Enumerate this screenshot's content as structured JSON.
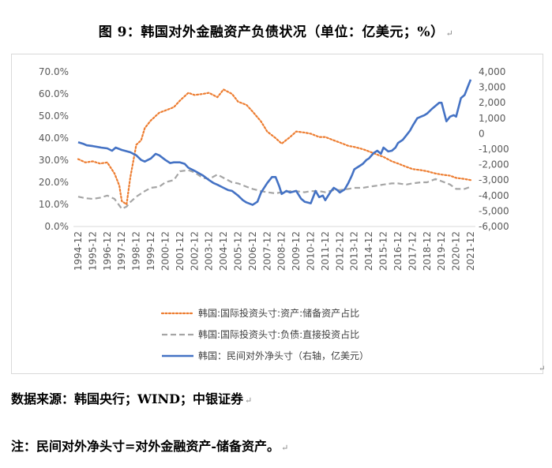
{
  "figure": {
    "title": "图 9：韩国对外金融资产负债状况（单位：亿美元；%）",
    "source": "数据来源：韩国央行；WIND；中银证券",
    "note": "注：民间对外净头寸=对外金融资产-储备资产。",
    "paragraph_mark": "↵"
  },
  "chart_data": {
    "type": "line",
    "title": "",
    "xlabel": "",
    "ylabel_left": "",
    "ylabel_right": "",
    "x_ticks": [
      "1994-12",
      "1995-12",
      "1996-12",
      "1997-12",
      "1998-12",
      "1999-12",
      "2000-12",
      "2001-12",
      "2002-12",
      "2003-12",
      "2004-12",
      "2005-12",
      "2006-12",
      "2007-12",
      "2008-12",
      "2009-12",
      "2010-12",
      "2011-12",
      "2012-12",
      "2013-12",
      "2014-12",
      "2015-12",
      "2016-12",
      "2017-12",
      "2018-12",
      "2019-12",
      "2020-12",
      "2021-12"
    ],
    "y_left": {
      "range": [
        0,
        70
      ],
      "ticks": [
        "0.0%",
        "10.0%",
        "20.0%",
        "30.0%",
        "40.0%",
        "50.0%",
        "60.0%",
        "70.0%"
      ]
    },
    "y_right": {
      "range": [
        -6000,
        4000
      ],
      "ticks": [
        "-6,000",
        "-5,000",
        "-4,000",
        "-3,000",
        "-2,000",
        "-1,000",
        "0",
        "1,000",
        "2,000",
        "3,000",
        "4,000"
      ]
    },
    "legend": [
      "韩国:国际投资头寸:资产:储备资产占比",
      "韩国:国际投资头寸:负债:直接投资占比",
      "韩国：民间对外净头寸（右轴，亿美元）"
    ],
    "series": [
      {
        "name": "韩国:国际投资头寸:资产:储备资产占比",
        "axis": "left",
        "color": "#ED7D31",
        "style": "dotted",
        "x": [
          1994.92,
          1995.42,
          1995.92,
          1996.42,
          1996.92,
          1997.42,
          1997.75,
          1997.92,
          1998.25,
          1998.5,
          1998.92,
          1999.25,
          1999.5,
          1999.92,
          2000.5,
          2000.92,
          2001.5,
          2001.92,
          2002.5,
          2002.92,
          2003.5,
          2003.92,
          2004.5,
          2004.92,
          2005.5,
          2005.92,
          2006.5,
          2006.92,
          2007.5,
          2007.92,
          2008.5,
          2008.92,
          2009.5,
          2009.92,
          2010.5,
          2010.92,
          2011.5,
          2011.92,
          2012.5,
          2012.92,
          2013.5,
          2013.92,
          2014.5,
          2014.92,
          2015.5,
          2015.92,
          2016.5,
          2016.92,
          2017.5,
          2017.92,
          2018.5,
          2018.92,
          2019.5,
          2019.92,
          2020.5,
          2020.92,
          2021.5,
          2021.92
        ],
        "values": [
          30.5,
          29.0,
          29.5,
          28.5,
          29.0,
          24.0,
          18.5,
          11.5,
          10.0,
          22.0,
          37.0,
          39.0,
          44.5,
          48.0,
          51.5,
          52.5,
          54.0,
          57.0,
          60.5,
          59.5,
          60.0,
          60.5,
          58.5,
          62.0,
          60.0,
          56.5,
          55.0,
          52.0,
          47.5,
          43.0,
          40.0,
          37.5,
          40.5,
          43.0,
          42.5,
          42.0,
          40.5,
          40.5,
          39.0,
          38.0,
          36.5,
          36.0,
          35.0,
          34.0,
          32.5,
          31.5,
          29.5,
          28.5,
          27.0,
          26.0,
          25.5,
          25.0,
          24.0,
          23.5,
          23.0,
          22.0,
          21.5,
          21.0
        ]
      },
      {
        "name": "韩国:国际投资头寸:负债:直接投资占比",
        "axis": "left",
        "color": "#A5A5A5",
        "style": "dashed",
        "x": [
          1994.92,
          1995.42,
          1995.92,
          1996.42,
          1996.92,
          1997.42,
          1997.92,
          1998.25,
          1998.5,
          1998.92,
          1999.5,
          1999.92,
          2000.5,
          2000.92,
          2001.5,
          2001.92,
          2002.5,
          2002.92,
          2003.5,
          2003.92,
          2004.5,
          2004.92,
          2005.5,
          2005.92,
          2006.5,
          2006.92,
          2007.5,
          2007.92,
          2008.5,
          2008.92,
          2009.5,
          2009.92,
          2010.5,
          2010.92,
          2011.5,
          2011.92,
          2012.5,
          2012.92,
          2013.5,
          2013.92,
          2014.5,
          2014.92,
          2015.5,
          2015.92,
          2016.5,
          2016.92,
          2017.5,
          2017.92,
          2018.5,
          2018.92,
          2019.5,
          2019.92,
          2020.5,
          2020.92,
          2021.5,
          2021.92
        ],
        "values": [
          13.5,
          12.8,
          12.5,
          13.0,
          14.0,
          12.5,
          8.0,
          9.0,
          11.0,
          13.5,
          16.0,
          17.5,
          18.0,
          20.0,
          21.0,
          25.0,
          25.5,
          24.5,
          22.0,
          21.5,
          23.5,
          22.0,
          20.0,
          19.5,
          18.0,
          17.0,
          16.0,
          15.5,
          15.0,
          15.5,
          16.0,
          16.0,
          15.5,
          16.0,
          16.0,
          15.5,
          16.5,
          16.5,
          17.0,
          17.5,
          17.5,
          18.0,
          18.5,
          19.0,
          19.5,
          19.5,
          19.0,
          19.5,
          20.0,
          20.0,
          21.5,
          20.5,
          19.0,
          17.0,
          17.0,
          18.0
        ]
      },
      {
        "name": "韩国：民间对外净头寸（右轴，亿美元）",
        "axis": "right",
        "color": "#4472C4",
        "style": "solid",
        "x": [
          1994.92,
          1995.25,
          1995.5,
          1995.92,
          1996.5,
          1996.92,
          1997.25,
          1997.5,
          1997.92,
          1998.5,
          1998.92,
          1999.25,
          1999.5,
          1999.92,
          2000.25,
          2000.5,
          2000.92,
          2001.25,
          2001.5,
          2001.92,
          2002.25,
          2002.5,
          2002.92,
          2003.5,
          2003.92,
          2004.25,
          2004.5,
          2004.92,
          2005.25,
          2005.5,
          2005.92,
          2006.25,
          2006.5,
          2006.92,
          2007.25,
          2007.5,
          2007.92,
          2008.25,
          2008.5,
          2008.75,
          2008.92,
          2009.25,
          2009.5,
          2009.92,
          2010.25,
          2010.5,
          2010.92,
          2011.25,
          2011.5,
          2011.75,
          2011.92,
          2012.25,
          2012.5,
          2012.75,
          2012.92,
          2013.25,
          2013.5,
          2013.75,
          2013.92,
          2014.25,
          2014.5,
          2014.75,
          2014.92,
          2015.25,
          2015.5,
          2015.75,
          2015.92,
          2016.25,
          2016.5,
          2016.75,
          2016.92,
          2017.25,
          2017.5,
          2017.75,
          2017.92,
          2018.25,
          2018.5,
          2018.75,
          2018.92,
          2019.25,
          2019.5,
          2019.75,
          2019.92,
          2020.25,
          2020.5,
          2020.75,
          2020.92,
          2021.25,
          2021.5,
          2021.75,
          2021.92
        ],
        "values": [
          -550,
          -650,
          -750,
          -800,
          -900,
          -950,
          -1100,
          -900,
          -1050,
          -1200,
          -1400,
          -1700,
          -1800,
          -1600,
          -1300,
          -1400,
          -1700,
          -1900,
          -1850,
          -1850,
          -1950,
          -2200,
          -2400,
          -2700,
          -3000,
          -3200,
          -3300,
          -3500,
          -3650,
          -3700,
          -4000,
          -4300,
          -4450,
          -4600,
          -4400,
          -3800,
          -3200,
          -2800,
          -2800,
          -3400,
          -3900,
          -3700,
          -3800,
          -3700,
          -4200,
          -4400,
          -4500,
          -3700,
          -4100,
          -4000,
          -4300,
          -3800,
          -3500,
          -3650,
          -3800,
          -3600,
          -3200,
          -2700,
          -2300,
          -2100,
          -1950,
          -1700,
          -1600,
          -1250,
          -1100,
          -1300,
          -900,
          -1150,
          -1100,
          -900,
          -600,
          -400,
          -100,
          200,
          500,
          1000,
          1100,
          1200,
          1300,
          1600,
          1800,
          2000,
          2000,
          800,
          1100,
          1200,
          1100,
          2300,
          2500,
          3100,
          3500
        ]
      }
    ]
  }
}
